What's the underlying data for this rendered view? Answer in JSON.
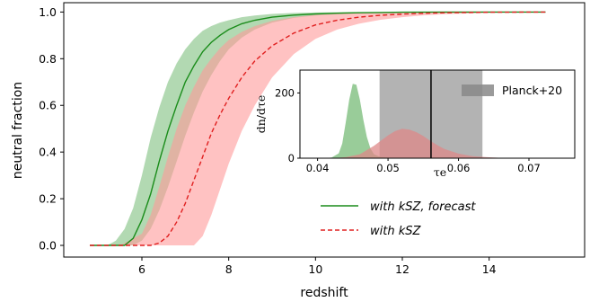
{
  "chart_data": [
    {
      "type": "line",
      "title": "",
      "xlabel": "redshift",
      "ylabel": "neutral fraction",
      "xlim": [
        4.2,
        16.2
      ],
      "ylim": [
        -0.05,
        1.04
      ],
      "xticks": [
        6,
        8,
        10,
        12,
        14
      ],
      "yticks": [
        0.0,
        0.2,
        0.4,
        0.6,
        0.8,
        1.0
      ],
      "xtick_labels": [
        "6",
        "8",
        "10",
        "12",
        "14"
      ],
      "ytick_labels": [
        "0.0",
        "0.2",
        "0.4",
        "0.6",
        "0.8",
        "1.0"
      ],
      "grid": false,
      "legend_position": "lower-right",
      "series": [
        {
          "name": "with kSZ, forecast",
          "color": "#1a8c1a",
          "line_style": "solid",
          "band_color": "#7fbf7f",
          "x": [
            4.8,
            5.0,
            5.2,
            5.4,
            5.6,
            5.8,
            6.0,
            6.2,
            6.4,
            6.6,
            6.8,
            7.0,
            7.2,
            7.4,
            7.6,
            7.8,
            8.0,
            8.3,
            8.6,
            9.0,
            9.5,
            10.0,
            10.5,
            11.0,
            11.5,
            12.0,
            13.0,
            14.0,
            15.3
          ],
          "y": [
            0.0,
            0.0,
            0.0,
            0.0,
            0.0,
            0.03,
            0.11,
            0.22,
            0.36,
            0.49,
            0.6,
            0.7,
            0.77,
            0.83,
            0.87,
            0.9,
            0.925,
            0.95,
            0.965,
            0.978,
            0.987,
            0.992,
            0.995,
            0.997,
            0.998,
            0.999,
            1.0,
            1.0,
            1.0
          ],
          "y_lower": [
            0.0,
            0.0,
            0.0,
            0.0,
            0.0,
            0.0,
            0.02,
            0.07,
            0.15,
            0.25,
            0.36,
            0.47,
            0.57,
            0.66,
            0.73,
            0.79,
            0.84,
            0.89,
            0.925,
            0.955,
            0.975,
            0.985,
            0.991,
            0.994,
            0.996,
            0.998,
            1.0,
            1.0,
            1.0
          ],
          "y_upper": [
            0.0,
            0.0,
            0.0,
            0.02,
            0.07,
            0.16,
            0.3,
            0.46,
            0.59,
            0.7,
            0.78,
            0.84,
            0.885,
            0.92,
            0.94,
            0.955,
            0.965,
            0.978,
            0.985,
            0.992,
            0.996,
            0.998,
            0.999,
            1.0,
            1.0,
            1.0,
            1.0,
            1.0,
            1.0
          ]
        },
        {
          "name": "with kSZ",
          "color": "#e02020",
          "line_style": "dashed",
          "band_color": "#ff9a9a",
          "x": [
            4.8,
            5.5,
            6.0,
            6.2,
            6.4,
            6.6,
            6.8,
            7.0,
            7.2,
            7.4,
            7.6,
            7.8,
            8.0,
            8.3,
            8.6,
            9.0,
            9.5,
            10.0,
            10.5,
            11.0,
            11.5,
            12.0,
            12.5,
            13.0,
            14.0,
            15.3
          ],
          "y": [
            0.0,
            0.0,
            0.0,
            0.0,
            0.01,
            0.04,
            0.1,
            0.18,
            0.28,
            0.38,
            0.48,
            0.56,
            0.63,
            0.72,
            0.79,
            0.855,
            0.91,
            0.945,
            0.965,
            0.978,
            0.986,
            0.991,
            0.995,
            0.997,
            0.999,
            1.0
          ],
          "y_lower": [
            0.0,
            0.0,
            0.0,
            0.0,
            0.0,
            0.0,
            0.0,
            0.0,
            0.0,
            0.04,
            0.13,
            0.24,
            0.35,
            0.49,
            0.6,
            0.72,
            0.82,
            0.885,
            0.925,
            0.95,
            0.967,
            0.978,
            0.986,
            0.991,
            0.997,
            1.0
          ],
          "y_upper": [
            0.0,
            0.0,
            0.05,
            0.13,
            0.25,
            0.38,
            0.5,
            0.6,
            0.68,
            0.75,
            0.8,
            0.845,
            0.88,
            0.915,
            0.94,
            0.962,
            0.978,
            0.988,
            0.993,
            0.996,
            0.998,
            0.999,
            1.0,
            1.0,
            1.0,
            1.0
          ]
        }
      ],
      "legend": [
        {
          "label": "with kSZ, forecast",
          "color": "#1a8c1a",
          "line_style": "solid"
        },
        {
          "label": "with kSZ",
          "color": "#e02020",
          "line_style": "dashed"
        }
      ]
    },
    {
      "type": "area",
      "title": "",
      "xlabel": "τe",
      "ylabel": "dn/dτe",
      "xlim": [
        0.0375,
        0.0765
      ],
      "ylim": [
        0,
        270
      ],
      "xticks": [
        0.04,
        0.05,
        0.06,
        0.07
      ],
      "yticks": [
        0,
        200
      ],
      "xtick_labels": [
        "0.04",
        "0.05",
        "0.06",
        "0.07"
      ],
      "ytick_labels": [
        "0",
        "200"
      ],
      "grid": false,
      "legend_position": "top-right",
      "band": {
        "name": "Planck+20",
        "x_range": [
          0.0488,
          0.0634
        ],
        "center": 0.0561,
        "color": "#b3b3b3",
        "line_color": "#000000"
      },
      "series": [
        {
          "color": "#77bb77",
          "x": [
            0.0395,
            0.041,
            0.042,
            0.043,
            0.0435,
            0.044,
            0.0445,
            0.045,
            0.0455,
            0.046,
            0.0465,
            0.047,
            0.0475,
            0.048,
            0.049,
            0.05,
            0.052,
            0.055
          ],
          "y": [
            0,
            0,
            2,
            15,
            45,
            110,
            180,
            228,
            225,
            180,
            118,
            65,
            30,
            12,
            3,
            1,
            0,
            0
          ]
        },
        {
          "color": "#dd8888",
          "x": [
            0.0395,
            0.042,
            0.044,
            0.046,
            0.048,
            0.05,
            0.051,
            0.052,
            0.053,
            0.054,
            0.055,
            0.056,
            0.057,
            0.058,
            0.06,
            0.062,
            0.064,
            0.066,
            0.068,
            0.07,
            0.0755
          ],
          "y": [
            0,
            0,
            3,
            12,
            38,
            70,
            83,
            90,
            88,
            80,
            68,
            53,
            40,
            28,
            14,
            6,
            3,
            1,
            0,
            0,
            0
          ]
        }
      ],
      "legend": [
        {
          "label": "Planck+20",
          "color": "#888888"
        }
      ]
    }
  ]
}
